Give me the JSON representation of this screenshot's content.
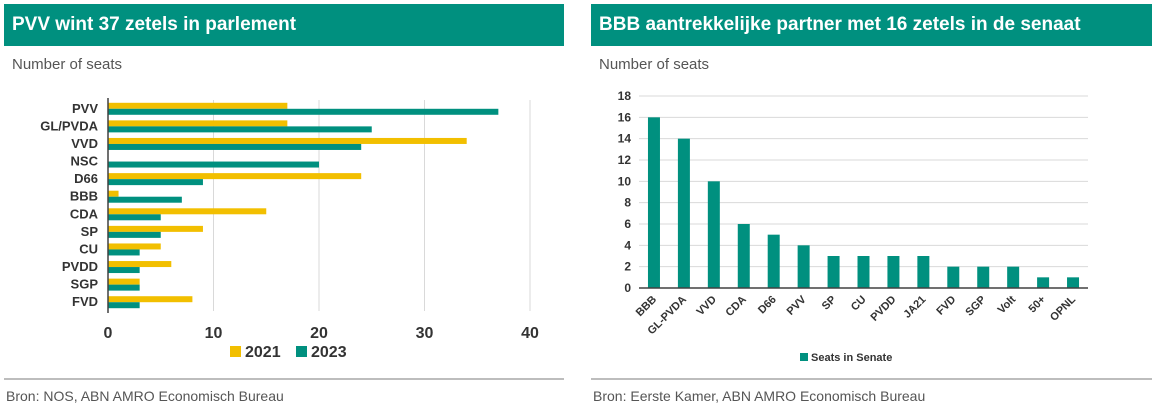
{
  "colors": {
    "header_bg": "#00907f",
    "series_2021": "#f2bf00",
    "series_2023": "#00907f",
    "senate": "#00907f",
    "grid": "#d9d9d9",
    "axis": "#404040"
  },
  "left": {
    "title": "PVV wint 37 zetels in parlement",
    "subtitle": "Number of seats",
    "source": "Bron: NOS, ABN AMRO Economisch Bureau"
  },
  "right": {
    "title": "BBB aantrekkelijke partner met 16 zetels in de senaat",
    "subtitle": "Number of seats",
    "source": "Bron: Eerste Kamer, ABN AMRO Economisch Bureau"
  },
  "chart_data": [
    {
      "type": "bar",
      "orientation": "horizontal",
      "title": "PVV wint 37 zetels in parlement",
      "ylabel": "Number of seats",
      "categories": [
        "PVV",
        "GL/PVDA",
        "VVD",
        "NSC",
        "D66",
        "BBB",
        "CDA",
        "SP",
        "CU",
        "PVDD",
        "SGP",
        "FVD"
      ],
      "series": [
        {
          "name": "2021",
          "color": "#f2bf00",
          "values": [
            17,
            17,
            34,
            0,
            24,
            1,
            15,
            9,
            5,
            6,
            3,
            8
          ]
        },
        {
          "name": "2023",
          "color": "#00907f",
          "values": [
            37,
            25,
            24,
            20,
            9,
            7,
            5,
            5,
            3,
            3,
            3,
            3
          ]
        }
      ],
      "xlim": [
        0,
        40
      ],
      "xticks": [
        0,
        10,
        20,
        30,
        40
      ],
      "grid": true,
      "legend": "bottom"
    },
    {
      "type": "bar",
      "orientation": "vertical",
      "title": "BBB aantrekkelijke partner met 16 zetels in de senaat",
      "ylabel": "Number of seats",
      "categories": [
        "BBB",
        "GL-PVDA",
        "VVD",
        "CDA",
        "D66",
        "PVV",
        "SP",
        "CU",
        "PVDD",
        "JA21",
        "FVD",
        "SGP",
        "Volt",
        "50+",
        "OPNL"
      ],
      "series": [
        {
          "name": "Seats in Senate",
          "color": "#00907f",
          "values": [
            16,
            14,
            10,
            6,
            5,
            4,
            3,
            3,
            3,
            3,
            2,
            2,
            2,
            1,
            1
          ]
        }
      ],
      "ylim": [
        0,
        18
      ],
      "yticks": [
        0,
        2,
        4,
        6,
        8,
        10,
        12,
        14,
        16,
        18
      ],
      "grid": true,
      "legend": "bottom"
    }
  ]
}
